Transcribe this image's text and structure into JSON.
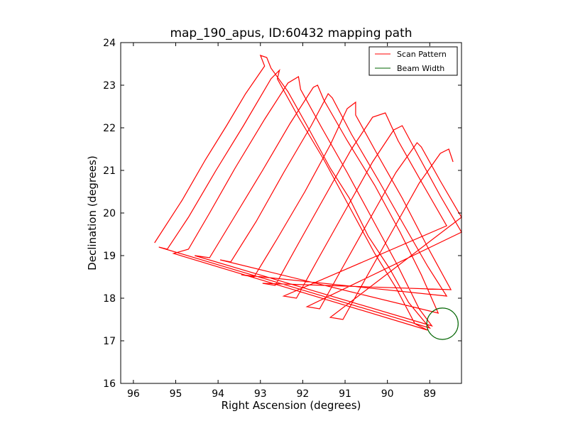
{
  "chart_data": {
    "type": "line",
    "title": "map_190_apus, ID:60432 mapping path",
    "xlabel": "Right Ascension (degrees)",
    "ylabel": "Declination (degrees)",
    "xlim": [
      96.3,
      88.25
    ],
    "ylim": [
      16,
      24
    ],
    "x_ticks": [
      96,
      95,
      94,
      93,
      92,
      91,
      90,
      89
    ],
    "y_ticks": [
      16,
      17,
      18,
      19,
      20,
      21,
      22,
      23,
      24
    ],
    "grid": false,
    "legend_position": "top-right",
    "colors": {
      "scan": "#ff0000",
      "beam": "#006400"
    },
    "series": [
      {
        "name": "Scan Pattern",
        "color": "#ff0000",
        "points": [
          [
            95.5,
            19.3
          ],
          [
            94.85,
            20.3
          ],
          [
            94.3,
            21.25
          ],
          [
            93.8,
            22.05
          ],
          [
            93.35,
            22.8
          ],
          [
            92.9,
            23.45
          ],
          [
            93.0,
            23.7
          ],
          [
            92.85,
            23.65
          ],
          [
            92.75,
            23.4
          ],
          [
            92.35,
            22.85
          ],
          [
            91.9,
            22.05
          ],
          [
            91.35,
            21.05
          ],
          [
            90.9,
            20.35
          ],
          [
            90.45,
            19.45
          ],
          [
            89.95,
            18.7
          ],
          [
            89.5,
            17.9
          ],
          [
            89.0,
            17.3
          ],
          [
            95.4,
            19.2
          ],
          [
            95.2,
            19.15
          ],
          [
            94.7,
            19.9
          ],
          [
            94.05,
            21.0
          ],
          [
            93.4,
            22.05
          ],
          [
            92.75,
            23.15
          ],
          [
            92.55,
            23.35
          ],
          [
            92.6,
            23.15
          ],
          [
            92.1,
            22.25
          ],
          [
            91.5,
            21.25
          ],
          [
            90.9,
            20.15
          ],
          [
            90.3,
            19.05
          ],
          [
            89.8,
            18.25
          ],
          [
            89.35,
            17.4
          ],
          [
            89.05,
            17.25
          ],
          [
            95.05,
            19.05
          ],
          [
            94.7,
            19.15
          ],
          [
            94.2,
            20.0
          ],
          [
            93.6,
            21.05
          ],
          [
            92.9,
            22.2
          ],
          [
            92.35,
            23.05
          ],
          [
            92.1,
            23.2
          ],
          [
            92.05,
            22.9
          ],
          [
            91.55,
            22.0
          ],
          [
            90.95,
            20.95
          ],
          [
            90.35,
            19.85
          ],
          [
            89.75,
            18.75
          ],
          [
            89.25,
            17.75
          ],
          [
            88.95,
            17.35
          ],
          [
            94.55,
            19.0
          ],
          [
            94.2,
            18.95
          ],
          [
            93.65,
            19.85
          ],
          [
            92.95,
            21.0
          ],
          [
            92.3,
            22.1
          ],
          [
            91.75,
            22.95
          ],
          [
            91.65,
            23.0
          ],
          [
            91.5,
            22.65
          ],
          [
            90.95,
            21.7
          ],
          [
            90.3,
            20.65
          ],
          [
            89.7,
            19.55
          ],
          [
            89.2,
            18.55
          ],
          [
            88.8,
            17.65
          ],
          [
            93.95,
            18.9
          ],
          [
            93.7,
            18.85
          ],
          [
            93.1,
            19.8
          ],
          [
            92.45,
            20.95
          ],
          [
            91.8,
            22.05
          ],
          [
            91.4,
            22.8
          ],
          [
            91.3,
            22.7
          ],
          [
            90.85,
            21.85
          ],
          [
            90.2,
            20.75
          ],
          [
            89.6,
            19.7
          ],
          [
            89.05,
            18.75
          ],
          [
            88.6,
            18.05
          ],
          [
            93.45,
            18.55
          ],
          [
            93.15,
            18.5
          ],
          [
            92.6,
            19.4
          ],
          [
            91.95,
            20.5
          ],
          [
            91.35,
            21.6
          ],
          [
            90.95,
            22.45
          ],
          [
            90.75,
            22.6
          ],
          [
            90.75,
            22.3
          ],
          [
            90.25,
            21.4
          ],
          [
            89.65,
            20.35
          ],
          [
            89.05,
            19.2
          ],
          [
            88.5,
            18.2
          ],
          [
            92.95,
            18.35
          ],
          [
            92.65,
            18.3
          ],
          [
            92.15,
            19.2
          ],
          [
            91.5,
            20.35
          ],
          [
            90.85,
            21.5
          ],
          [
            90.35,
            22.25
          ],
          [
            90.05,
            22.35
          ],
          [
            89.75,
            21.7
          ],
          [
            89.15,
            20.65
          ],
          [
            88.6,
            19.7
          ],
          [
            92.45,
            18.05
          ],
          [
            92.15,
            18.0
          ],
          [
            91.65,
            18.9
          ],
          [
            91.0,
            20.05
          ],
          [
            90.35,
            21.2
          ],
          [
            89.85,
            21.95
          ],
          [
            89.65,
            22.05
          ],
          [
            89.3,
            21.4
          ],
          [
            88.75,
            20.4
          ],
          [
            88.25,
            19.55
          ],
          [
            91.9,
            17.8
          ],
          [
            91.6,
            17.75
          ],
          [
            91.1,
            18.65
          ],
          [
            90.45,
            19.8
          ],
          [
            89.8,
            20.95
          ],
          [
            89.3,
            21.65
          ],
          [
            89.2,
            21.55
          ],
          [
            88.75,
            20.75
          ],
          [
            88.25,
            19.9
          ],
          [
            91.35,
            17.55
          ],
          [
            91.05,
            17.5
          ],
          [
            90.55,
            18.4
          ],
          [
            89.9,
            19.55
          ],
          [
            89.25,
            20.7
          ],
          [
            88.75,
            21.4
          ],
          [
            88.55,
            21.5
          ],
          [
            88.45,
            21.2
          ]
        ]
      },
      {
        "name": "Beam Width",
        "color": "#006400",
        "circle": {
          "center": [
            88.7,
            17.4
          ],
          "radius": 0.37
        }
      }
    ]
  },
  "legend": {
    "items": [
      {
        "label": "Scan Pattern",
        "color": "#ff0000"
      },
      {
        "label": "Beam Width",
        "color": "#006400"
      }
    ]
  }
}
